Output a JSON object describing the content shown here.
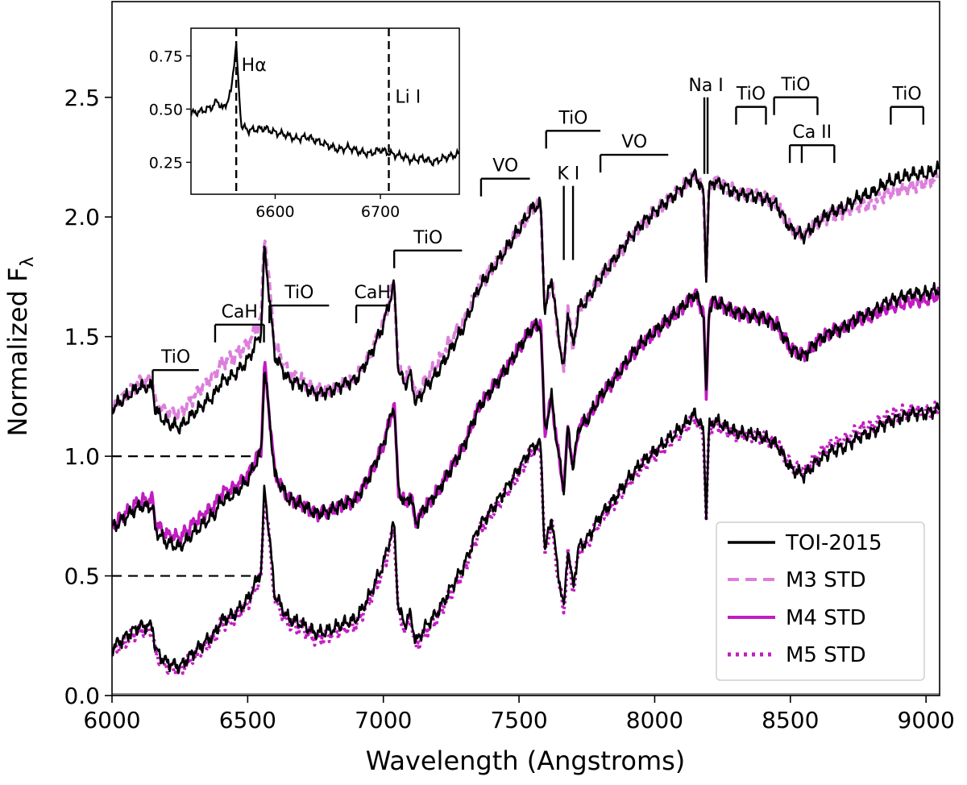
{
  "chart_data": {
    "type": "line",
    "xlabel": "Wavelength (Angstroms)",
    "ylabel_text": "Normalized F",
    "ylabel_subscript": "λ",
    "xlim": [
      6000,
      9050
    ],
    "ylim": [
      0.0,
      2.9
    ],
    "xticks": [
      6000,
      6500,
      7000,
      7500,
      8000,
      8500,
      9000
    ],
    "yticks": [
      0.0,
      0.5,
      1.0,
      1.5,
      2.0,
      2.5
    ],
    "xtick_labels": [
      "6000",
      "6500",
      "7000",
      "7500",
      "8000",
      "8500",
      "9000"
    ],
    "ytick_labels": [
      "0.0",
      "0.5",
      "1.0",
      "1.5",
      "2.0",
      "2.5"
    ],
    "colors": {
      "toi": "#000000",
      "m3": "#dc7fdc",
      "m4": "#c21cc2",
      "m5": "#c21cc2",
      "baseline": "#8c8c8c"
    },
    "offsets": {
      "m3_pair": 1.0,
      "m4_pair": 0.5,
      "m5_pair": 0.0
    },
    "reference_lines": [
      {
        "y": 1.0,
        "x_range": [
          6000,
          6550
        ],
        "style": "dashed"
      },
      {
        "y": 0.5,
        "x_range": [
          6000,
          6550
        ],
        "style": "dashed"
      }
    ],
    "base_profile": {
      "description": "TOI-2015 spectrum, normalized (unoffset) flux",
      "x": [
        6000,
        6100,
        6150,
        6160,
        6200,
        6250,
        6300,
        6380,
        6400,
        6450,
        6500,
        6550,
        6562,
        6600,
        6650,
        6700,
        6750,
        6800,
        6850,
        6900,
        6950,
        7000,
        7040,
        7055,
        7080,
        7100,
        7120,
        7150,
        7200,
        7250,
        7300,
        7350,
        7400,
        7450,
        7500,
        7550,
        7580,
        7595,
        7620,
        7640,
        7665,
        7680,
        7699,
        7720,
        7750,
        7800,
        7850,
        7900,
        7950,
        8000,
        8050,
        8100,
        8150,
        8180,
        8190,
        8200,
        8220,
        8300,
        8400,
        8450,
        8500,
        8550,
        8600,
        8650,
        8700,
        8750,
        8800,
        8850,
        8900,
        8950,
        9000,
        9050
      ],
      "y": [
        0.2,
        0.29,
        0.29,
        0.19,
        0.14,
        0.12,
        0.18,
        0.26,
        0.31,
        0.34,
        0.4,
        0.52,
        0.88,
        0.42,
        0.32,
        0.3,
        0.26,
        0.27,
        0.3,
        0.32,
        0.42,
        0.55,
        0.72,
        0.36,
        0.3,
        0.34,
        0.22,
        0.28,
        0.35,
        0.45,
        0.55,
        0.7,
        0.78,
        0.86,
        0.95,
        1.04,
        1.05,
        0.6,
        0.75,
        0.55,
        0.36,
        0.62,
        0.45,
        0.62,
        0.65,
        0.75,
        0.82,
        0.9,
        0.97,
        1.02,
        1.07,
        1.12,
        1.18,
        1.1,
        0.75,
        1.12,
        1.15,
        1.1,
        1.08,
        1.05,
        0.95,
        0.92,
        0.98,
        1.02,
        1.04,
        1.08,
        1.1,
        1.14,
        1.16,
        1.18,
        1.18,
        1.2
      ]
    },
    "series": [
      {
        "name": "TOI-2015",
        "offset": 1.0,
        "style": "solid"
      },
      {
        "name": "M3 STD",
        "offset": 1.0,
        "style": "dashed"
      },
      {
        "name": "TOI-2015",
        "offset": 0.5,
        "style": "solid"
      },
      {
        "name": "M4 STD",
        "offset": 0.5,
        "style": "solid"
      },
      {
        "name": "TOI-2015",
        "offset": 0.0,
        "style": "solid"
      },
      {
        "name": "M5 STD",
        "offset": 0.0,
        "style": "dotted"
      }
    ],
    "legend": {
      "placement": "lower-right",
      "entries": [
        {
          "label": "TOI-2015",
          "style": "solid",
          "color": "#000000"
        },
        {
          "label": "M3 STD",
          "style": "dashed",
          "color": "#dc7fdc"
        },
        {
          "label": "M4 STD",
          "style": "solid",
          "color": "#c21cc2"
        },
        {
          "label": "M5 STD",
          "style": "dotted",
          "color": "#c21cc2"
        }
      ]
    },
    "annotations": [
      {
        "text": "TiO",
        "bracket": [
          6150,
          6320
        ],
        "y": 1.36,
        "hooks": [
          6150
        ]
      },
      {
        "text": "CaH",
        "bracket": [
          6380,
          6560
        ],
        "y": 1.55,
        "hooks": [
          6380,
          6560
        ]
      },
      {
        "text": "TiO",
        "bracket": [
          6580,
          6800
        ],
        "y": 1.63,
        "hooks": [
          6580
        ]
      },
      {
        "text": "CaH",
        "bracket": [
          6900,
          7020
        ],
        "y": 1.63,
        "hooks": [
          6900
        ]
      },
      {
        "text": "TiO",
        "bracket": [
          7040,
          7290
        ],
        "y": 1.86,
        "hooks": [
          7040
        ]
      },
      {
        "text": "VO",
        "bracket": [
          7360,
          7540
        ],
        "y": 2.16,
        "hooks": [
          7360
        ]
      },
      {
        "text": "TiO",
        "bracket": [
          7600,
          7800
        ],
        "y": 2.36,
        "hooks": [
          7600
        ]
      },
      {
        "text": "K I",
        "lines": [
          7665,
          7699
        ],
        "y_top": 2.13,
        "y_bottom": 1.82
      },
      {
        "text": "VO",
        "bracket": [
          7800,
          8050
        ],
        "y": 2.26,
        "hooks": [
          7800
        ]
      },
      {
        "text": "Na I",
        "lines": [
          8183,
          8195
        ],
        "y_top": 2.5,
        "y_bottom": 2.18
      },
      {
        "text": "TiO",
        "bracket": [
          8300,
          8410
        ],
        "y": 2.46,
        "hooks": [
          8300,
          8410
        ]
      },
      {
        "text": "TiO",
        "bracket": [
          8440,
          8600
        ],
        "y": 2.5,
        "hooks": [
          8440,
          8600
        ]
      },
      {
        "text": "Ca II",
        "bracket": [
          8498,
          8662
        ],
        "y": 2.3,
        "hooks": [
          8498,
          8542,
          8662
        ]
      },
      {
        "text": "TiO",
        "bracket": [
          8870,
          8990
        ],
        "y": 2.46,
        "hooks": [
          8870,
          8990
        ]
      }
    ],
    "inset": {
      "xlim": [
        6520,
        6775
      ],
      "ylim": [
        0.1,
        0.88
      ],
      "xticks": [
        6600,
        6700
      ],
      "yticks": [
        0.25,
        0.5,
        0.75
      ],
      "xtick_labels": [
        "6600",
        "6700"
      ],
      "ytick_labels": [
        "0.25",
        "0.50",
        "0.75"
      ],
      "vlines": [
        6563,
        6708
      ],
      "labels": [
        {
          "text": "Hα",
          "x": 6568,
          "y": 0.68
        },
        {
          "text": "Li I",
          "x": 6714,
          "y": 0.53
        }
      ],
      "x": [
        6520,
        6530,
        6540,
        6545,
        6550,
        6555,
        6558,
        6561,
        6563,
        6565,
        6568,
        6575,
        6590,
        6600,
        6610,
        6620,
        6630,
        6640,
        6650,
        6660,
        6670,
        6680,
        6690,
        6700,
        6710,
        6720,
        6730,
        6740,
        6750,
        6760,
        6775
      ],
      "y": [
        0.48,
        0.49,
        0.51,
        0.54,
        0.5,
        0.54,
        0.58,
        0.72,
        0.8,
        0.62,
        0.42,
        0.4,
        0.41,
        0.39,
        0.38,
        0.36,
        0.37,
        0.35,
        0.33,
        0.31,
        0.32,
        0.3,
        0.29,
        0.31,
        0.29,
        0.28,
        0.26,
        0.27,
        0.25,
        0.27,
        0.29
      ]
    }
  }
}
